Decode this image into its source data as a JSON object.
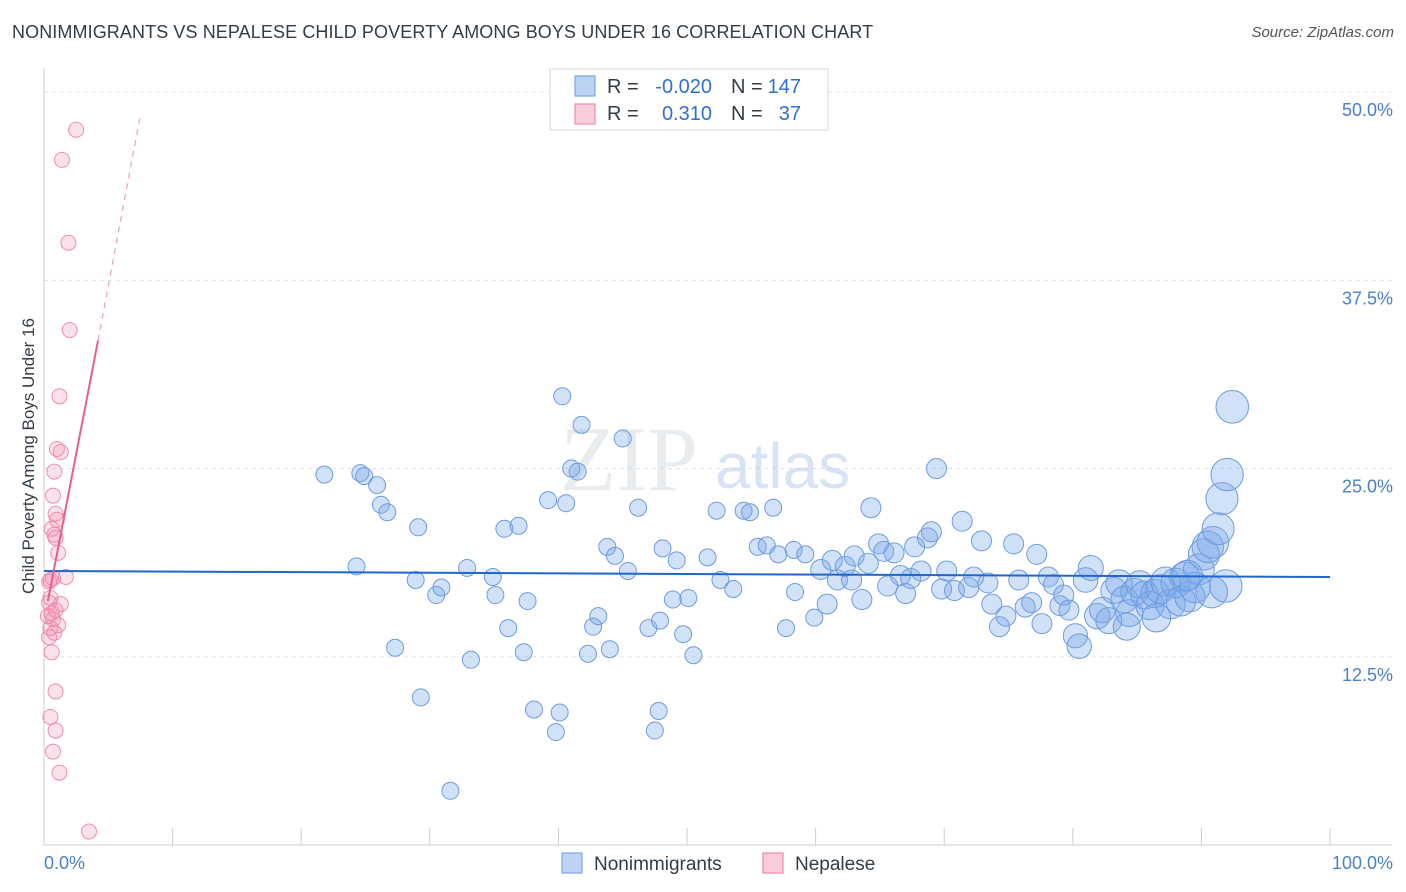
{
  "header": {
    "title": "NONIMMIGRANTS VS NEPALESE CHILD POVERTY AMONG BOYS UNDER 16 CORRELATION CHART",
    "source": "Source: ZipAtlas.com"
  },
  "legend_box": {
    "rows": [
      {
        "r_label": "R =",
        "r_value": "-0.020",
        "n_label": "N =",
        "n_value": "147"
      },
      {
        "r_label": "R =",
        "r_value": "0.310",
        "n_label": "N =",
        "n_value": "37"
      }
    ]
  },
  "watermark": {
    "zip": "ZIP",
    "atlas": "atlas"
  },
  "chart_data": {
    "type": "scatter",
    "title": "NONIMMIGRANTS VS NEPALESE CHILD POVERTY AMONG BOYS UNDER 16 CORRELATION CHART",
    "ylabel": "Child Poverty Among Boys Under 16",
    "xlim": [
      0,
      100
    ],
    "ylim": [
      0,
      52
    ],
    "y_ticks": [
      "12.5%",
      "25.0%",
      "37.5%",
      "50.0%"
    ],
    "x_ticks": [
      "0.0%",
      "100.0%"
    ],
    "grid": true,
    "colors": {
      "Nonimmigrants": "#7aa8e8",
      "Nepalese": "#f08bab",
      "blue_line": "#2166c9",
      "pink_line": "#e8608a"
    },
    "series": [
      {
        "name": "Nonimmigrants",
        "trend": {
          "x": [
            0,
            100
          ],
          "y": [
            18.2,
            17.8
          ]
        },
        "points": [
          [
            21.8,
            24.6
          ],
          [
            24.6,
            24.7
          ],
          [
            24.9,
            24.5
          ],
          [
            25.9,
            23.9
          ],
          [
            24.3,
            18.5
          ],
          [
            26.2,
            22.6
          ],
          [
            26.7,
            22.1
          ],
          [
            29.1,
            21.1
          ],
          [
            27.3,
            13.1
          ],
          [
            28.9,
            17.6
          ],
          [
            29.3,
            9.8
          ],
          [
            30.5,
            16.6
          ],
          [
            30.9,
            17.1
          ],
          [
            31.6,
            3.6
          ],
          [
            33.2,
            12.3
          ],
          [
            32.9,
            18.4
          ],
          [
            34.9,
            17.8
          ],
          [
            35.1,
            16.6
          ],
          [
            36.1,
            14.4
          ],
          [
            35.8,
            21.0
          ],
          [
            36.9,
            21.2
          ],
          [
            37.3,
            12.8
          ],
          [
            37.6,
            16.2
          ],
          [
            38.1,
            9.0
          ],
          [
            39.2,
            22.9
          ],
          [
            39.8,
            7.5
          ],
          [
            40.1,
            8.8
          ],
          [
            40.3,
            29.8
          ],
          [
            40.6,
            22.7
          ],
          [
            41.0,
            25.0
          ],
          [
            41.5,
            24.8
          ],
          [
            41.8,
            27.9
          ],
          [
            42.3,
            12.7
          ],
          [
            42.7,
            14.5
          ],
          [
            43.1,
            15.2
          ],
          [
            43.8,
            19.8
          ],
          [
            44.0,
            13.0
          ],
          [
            44.4,
            19.2
          ],
          [
            45.0,
            27.0
          ],
          [
            45.4,
            18.2
          ],
          [
            46.2,
            22.4
          ],
          [
            47.0,
            14.4
          ],
          [
            47.5,
            7.6
          ],
          [
            47.8,
            8.9
          ],
          [
            47.9,
            14.9
          ],
          [
            48.1,
            19.7
          ],
          [
            48.9,
            16.3
          ],
          [
            49.2,
            18.9
          ],
          [
            49.7,
            14.0
          ],
          [
            50.1,
            16.4
          ],
          [
            50.5,
            12.6
          ],
          [
            51.6,
            19.1
          ],
          [
            52.3,
            22.2
          ],
          [
            52.6,
            17.6
          ],
          [
            53.6,
            17.0
          ],
          [
            54.4,
            22.2
          ],
          [
            54.9,
            22.1
          ],
          [
            55.5,
            19.8
          ],
          [
            56.2,
            19.9
          ],
          [
            56.7,
            22.4
          ],
          [
            57.1,
            19.3
          ],
          [
            57.7,
            14.4
          ],
          [
            58.3,
            19.6
          ],
          [
            58.4,
            16.8
          ],
          [
            59.2,
            19.3
          ],
          [
            59.9,
            15.1
          ],
          [
            60.4,
            18.3
          ],
          [
            60.9,
            16.0
          ],
          [
            61.3,
            18.9
          ],
          [
            61.7,
            17.6
          ],
          [
            62.3,
            18.5
          ],
          [
            62.8,
            17.6
          ],
          [
            63.0,
            19.2
          ],
          [
            63.6,
            16.3
          ],
          [
            64.1,
            18.7
          ],
          [
            64.3,
            22.4
          ],
          [
            64.9,
            20.0
          ],
          [
            65.3,
            19.5
          ],
          [
            65.6,
            17.2
          ],
          [
            66.1,
            19.4
          ],
          [
            66.6,
            17.9
          ],
          [
            67.0,
            16.7
          ],
          [
            67.4,
            17.7
          ],
          [
            67.7,
            19.8
          ],
          [
            68.2,
            18.2
          ],
          [
            68.7,
            20.4
          ],
          [
            69.0,
            20.8
          ],
          [
            69.4,
            25.0
          ],
          [
            69.8,
            17.0
          ],
          [
            70.2,
            18.2
          ],
          [
            70.8,
            16.9
          ],
          [
            71.4,
            21.5
          ],
          [
            71.9,
            17.1
          ],
          [
            72.3,
            17.8
          ],
          [
            72.9,
            20.2
          ],
          [
            73.4,
            17.4
          ],
          [
            73.7,
            16.0
          ],
          [
            74.3,
            14.5
          ],
          [
            74.8,
            15.2
          ],
          [
            75.4,
            20.0
          ],
          [
            75.8,
            17.6
          ],
          [
            76.3,
            15.8
          ],
          [
            76.8,
            16.1
          ],
          [
            77.2,
            19.3
          ],
          [
            77.6,
            14.7
          ],
          [
            78.1,
            17.8
          ],
          [
            78.5,
            17.3
          ],
          [
            79.0,
            15.9
          ],
          [
            79.3,
            16.6
          ],
          [
            79.7,
            15.6
          ],
          [
            80.2,
            13.9
          ],
          [
            80.5,
            13.2
          ],
          [
            81.0,
            17.6
          ],
          [
            81.4,
            18.4
          ],
          [
            81.9,
            15.2
          ],
          [
            82.3,
            15.6
          ],
          [
            82.8,
            14.9
          ],
          [
            83.2,
            16.9
          ],
          [
            83.6,
            17.4
          ],
          [
            84.0,
            16.3
          ],
          [
            84.4,
            15.4
          ],
          [
            84.8,
            16.8
          ],
          [
            85.2,
            17.3
          ],
          [
            85.6,
            16.6
          ],
          [
            86.0,
            15.9
          ],
          [
            86.4,
            16.7
          ],
          [
            86.8,
            17.0
          ],
          [
            87.2,
            17.5
          ],
          [
            87.6,
            16.0
          ],
          [
            88.0,
            17.4
          ],
          [
            88.4,
            16.2
          ],
          [
            88.7,
            17.8
          ],
          [
            89.1,
            16.5
          ],
          [
            89.5,
            17.1
          ],
          [
            89.8,
            18.3
          ],
          [
            90.2,
            19.3
          ],
          [
            90.5,
            19.8
          ],
          [
            90.9,
            20.1
          ],
          [
            91.3,
            21.0
          ],
          [
            91.6,
            23.0
          ],
          [
            92.0,
            24.6
          ],
          [
            92.4,
            29.1
          ],
          [
            84.2,
            14.5
          ],
          [
            86.5,
            15.1
          ],
          [
            88.9,
            17.9
          ],
          [
            90.8,
            16.8
          ],
          [
            91.9,
            17.2
          ]
        ]
      },
      {
        "name": "Nepalese",
        "trend": {
          "x": [
            0.3,
            4.2
          ],
          "y": [
            16.2,
            33.5
          ]
        },
        "trend_extension": {
          "x": [
            4.2,
            7.5
          ],
          "y": [
            33.5,
            48.5
          ]
        },
        "points": [
          [
            2.5,
            47.5
          ],
          [
            1.4,
            45.5
          ],
          [
            1.9,
            40.0
          ],
          [
            2.0,
            34.2
          ],
          [
            1.2,
            29.8
          ],
          [
            1.0,
            26.3
          ],
          [
            1.3,
            26.1
          ],
          [
            0.8,
            24.8
          ],
          [
            0.7,
            23.2
          ],
          [
            0.9,
            22.0
          ],
          [
            1.0,
            21.6
          ],
          [
            0.6,
            21.0
          ],
          [
            0.8,
            20.6
          ],
          [
            0.9,
            20.4
          ],
          [
            1.1,
            19.4
          ],
          [
            1.7,
            17.8
          ],
          [
            0.5,
            17.6
          ],
          [
            0.7,
            17.7
          ],
          [
            0.4,
            17.5
          ],
          [
            0.5,
            16.4
          ],
          [
            1.3,
            16.0
          ],
          [
            0.9,
            15.6
          ],
          [
            0.6,
            15.4
          ],
          [
            0.3,
            15.2
          ],
          [
            0.7,
            15.0
          ],
          [
            1.1,
            14.6
          ],
          [
            0.5,
            14.4
          ],
          [
            0.8,
            14.1
          ],
          [
            0.4,
            13.8
          ],
          [
            0.6,
            12.8
          ],
          [
            0.9,
            10.2
          ],
          [
            0.5,
            8.5
          ],
          [
            0.9,
            7.6
          ],
          [
            0.7,
            6.2
          ],
          [
            1.2,
            4.8
          ],
          [
            3.5,
            0.9
          ],
          [
            0.4,
            16.1
          ]
        ]
      }
    ],
    "legend_labels": [
      "Nonimmigrants",
      "Nepalese"
    ]
  }
}
